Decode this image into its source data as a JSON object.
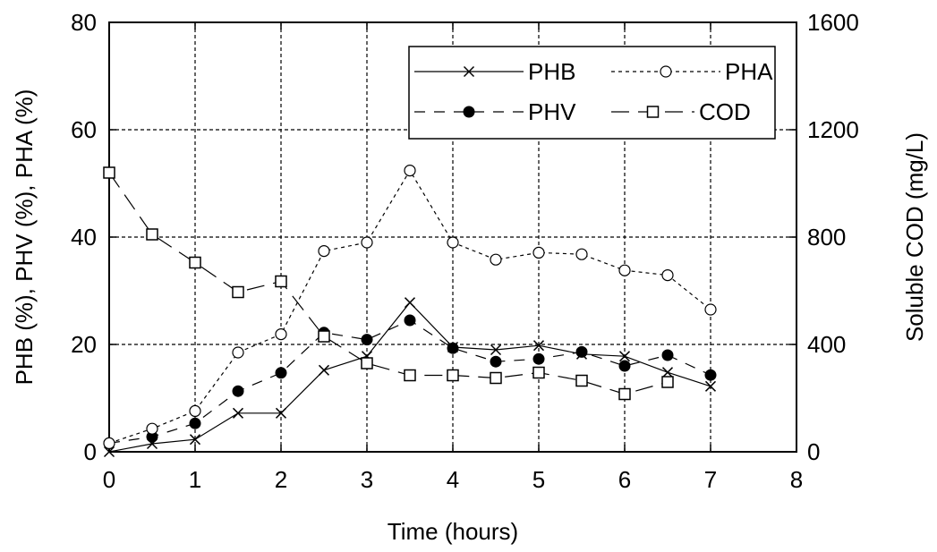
{
  "chart_data": {
    "type": "line",
    "xlabel": "Time (hours)",
    "ylabel": "PHB (%), PHV (%), PHA (%)",
    "y2label": "Soluble COD (mg/L)",
    "xlim": [
      0,
      8
    ],
    "ylim": [
      0,
      80
    ],
    "y2lim": [
      0,
      1600
    ],
    "x_ticks": [
      "0",
      "1",
      "2",
      "3",
      "4",
      "5",
      "6",
      "7",
      "8"
    ],
    "y_ticks": [
      "0",
      "20",
      "40",
      "60",
      "80"
    ],
    "y2_ticks": [
      "0",
      "400",
      "800",
      "1200",
      "1600"
    ],
    "grid": true,
    "legend_position": "top-right",
    "series": [
      {
        "name": "PHB",
        "axis": "left",
        "marker": "x",
        "line": "solid",
        "x": [
          0,
          0.5,
          1,
          1.5,
          2,
          2.5,
          3,
          3.5,
          4,
          4.5,
          5,
          5.5,
          6,
          6.5,
          7
        ],
        "values": [
          0,
          1.5,
          2.3,
          7.2,
          7.2,
          15.2,
          17.8,
          27.8,
          19.5,
          19.0,
          19.8,
          18.2,
          17.8,
          14.8,
          12.2
        ]
      },
      {
        "name": "PHV",
        "axis": "left",
        "marker": "filled-circle",
        "line": "dashed",
        "x": [
          0,
          0.5,
          1,
          1.5,
          2,
          2.5,
          3,
          3.5,
          4,
          4.5,
          5,
          5.5,
          6,
          6.5,
          7
        ],
        "values": [
          1.6,
          2.8,
          5.3,
          11.3,
          14.7,
          22.2,
          20.9,
          24.5,
          19.3,
          16.8,
          17.3,
          18.6,
          16.0,
          18.0,
          14.3
        ]
      },
      {
        "name": "PHA",
        "axis": "left",
        "marker": "open-circle",
        "line": "dotted",
        "x": [
          0,
          0.5,
          1,
          1.5,
          2,
          2.5,
          3,
          3.5,
          4,
          4.5,
          5,
          5.5,
          6,
          6.5,
          7
        ],
        "values": [
          1.6,
          4.3,
          7.6,
          18.5,
          21.9,
          37.4,
          39.0,
          52.4,
          39.0,
          35.8,
          37.1,
          36.8,
          33.8,
          32.9,
          26.5
        ]
      },
      {
        "name": "COD",
        "axis": "right",
        "marker": "open-square",
        "line": "long-dash",
        "x": [
          0,
          0.5,
          1,
          1.5,
          2,
          2.5,
          3,
          3.5,
          4,
          4.5,
          5,
          5.5,
          6,
          6.5,
          7
        ],
        "values": [
          1040,
          810,
          705,
          595,
          635,
          430,
          330,
          285,
          285,
          275,
          295,
          265,
          215,
          260,
          null
        ]
      }
    ]
  }
}
